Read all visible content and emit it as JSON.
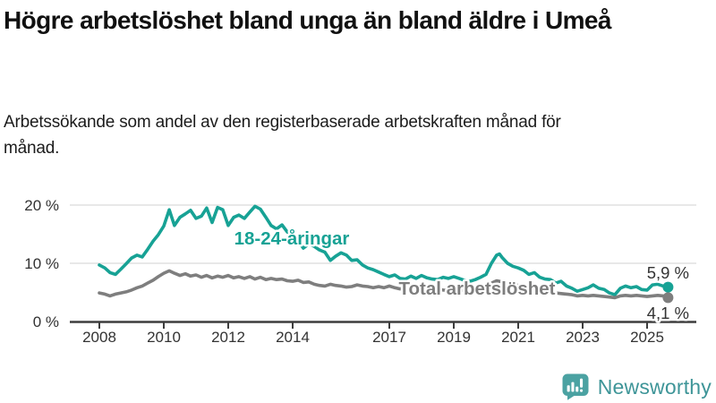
{
  "header": {
    "title": "Högre arbetslöshet bland unga än bland äldre i Umeå",
    "subtitle": "Arbetssökande som andel av den registerbaserade arbetskraften månad för månad."
  },
  "branding": {
    "name": "Newsworthy",
    "icon": "newsworthy-speech-bubble-barchart-icon",
    "text_color": "#3E9598",
    "icon_color": "#4BA2A2"
  },
  "chart_data": {
    "type": "line",
    "title": "Högre arbetslöshet bland unga än bland äldre i Umeå",
    "subtitle": "Arbetssökande som andel av den registerbaserade arbetskraften månad för månad.",
    "unit": "%",
    "grid": "horizontal-only",
    "legend_position": "inline-labels-on-lines",
    "xlim": [
      2007.1,
      2026.5
    ],
    "ylim": [
      0,
      22
    ],
    "x_ticks": [
      2008,
      2010,
      2012,
      2014,
      2017,
      2019,
      2021,
      2023,
      2025
    ],
    "y_ticks": [
      {
        "value": 0,
        "label": "0 %"
      },
      {
        "value": 10,
        "label": "10 %"
      },
      {
        "value": 20,
        "label": "20 %"
      }
    ],
    "colors": {
      "youth_line": "#17A295",
      "total_line": "#7E7E7E",
      "axis": "#3D3D3D",
      "gridline": "#DBDBDB",
      "tick_label": "#333333",
      "end_label": "#333333"
    },
    "series": [
      {
        "name": "18-24-åringar",
        "color": "#17A295",
        "end_label": "5,9 %",
        "end_value": 5.9,
        "points": [
          [
            2008.0,
            9.7
          ],
          [
            2008.17,
            9.2
          ],
          [
            2008.33,
            8.4
          ],
          [
            2008.5,
            8.1
          ],
          [
            2008.67,
            9.0
          ],
          [
            2008.83,
            9.9
          ],
          [
            2009.0,
            10.9
          ],
          [
            2009.17,
            11.4
          ],
          [
            2009.33,
            11.1
          ],
          [
            2009.5,
            12.4
          ],
          [
            2009.67,
            13.8
          ],
          [
            2009.83,
            14.9
          ],
          [
            2010.0,
            16.4
          ],
          [
            2010.17,
            19.2
          ],
          [
            2010.33,
            16.5
          ],
          [
            2010.5,
            17.9
          ],
          [
            2010.67,
            18.5
          ],
          [
            2010.83,
            19.1
          ],
          [
            2011.0,
            17.7
          ],
          [
            2011.17,
            18.1
          ],
          [
            2011.33,
            19.5
          ],
          [
            2011.5,
            17.0
          ],
          [
            2011.67,
            19.6
          ],
          [
            2011.83,
            19.2
          ],
          [
            2012.0,
            16.5
          ],
          [
            2012.17,
            17.9
          ],
          [
            2012.33,
            18.3
          ],
          [
            2012.5,
            17.7
          ],
          [
            2012.67,
            18.8
          ],
          [
            2012.83,
            19.8
          ],
          [
            2013.0,
            19.3
          ],
          [
            2013.17,
            17.9
          ],
          [
            2013.33,
            16.5
          ],
          [
            2013.5,
            15.9
          ],
          [
            2013.67,
            16.6
          ],
          [
            2013.83,
            15.4
          ],
          [
            2014.0,
            14.6
          ],
          [
            2014.17,
            13.9
          ],
          [
            2014.33,
            12.6
          ],
          [
            2014.5,
            13.3
          ],
          [
            2014.67,
            12.9
          ],
          [
            2014.83,
            12.3
          ],
          [
            2015.0,
            11.9
          ],
          [
            2015.17,
            10.5
          ],
          [
            2015.33,
            11.2
          ],
          [
            2015.5,
            11.8
          ],
          [
            2015.67,
            11.4
          ],
          [
            2015.83,
            10.5
          ],
          [
            2016.0,
            10.6
          ],
          [
            2016.17,
            9.7
          ],
          [
            2016.33,
            9.2
          ],
          [
            2016.5,
            8.9
          ],
          [
            2016.67,
            8.5
          ],
          [
            2016.83,
            8.1
          ],
          [
            2017.0,
            7.7
          ],
          [
            2017.17,
            8.0
          ],
          [
            2017.33,
            7.4
          ],
          [
            2017.5,
            7.3
          ],
          [
            2017.67,
            7.8
          ],
          [
            2017.83,
            7.4
          ],
          [
            2018.0,
            7.9
          ],
          [
            2018.17,
            7.5
          ],
          [
            2018.33,
            7.3
          ],
          [
            2018.5,
            7.2
          ],
          [
            2018.67,
            7.6
          ],
          [
            2018.83,
            7.4
          ],
          [
            2019.0,
            7.7
          ],
          [
            2019.17,
            7.4
          ],
          [
            2019.33,
            7.1
          ],
          [
            2019.5,
            6.9
          ],
          [
            2019.67,
            7.2
          ],
          [
            2019.83,
            7.6
          ],
          [
            2020.0,
            8.1
          ],
          [
            2020.17,
            10.0
          ],
          [
            2020.33,
            11.4
          ],
          [
            2020.42,
            11.6
          ],
          [
            2020.5,
            11.0
          ],
          [
            2020.67,
            10.0
          ],
          [
            2020.83,
            9.5
          ],
          [
            2021.0,
            9.2
          ],
          [
            2021.17,
            8.8
          ],
          [
            2021.33,
            8.1
          ],
          [
            2021.5,
            8.4
          ],
          [
            2021.67,
            7.6
          ],
          [
            2021.83,
            7.3
          ],
          [
            2022.0,
            7.2
          ],
          [
            2022.17,
            6.6
          ],
          [
            2022.33,
            6.9
          ],
          [
            2022.5,
            6.1
          ],
          [
            2022.67,
            5.7
          ],
          [
            2022.83,
            5.2
          ],
          [
            2023.0,
            5.5
          ],
          [
            2023.17,
            5.8
          ],
          [
            2023.33,
            6.3
          ],
          [
            2023.5,
            5.7
          ],
          [
            2023.67,
            5.5
          ],
          [
            2023.83,
            4.9
          ],
          [
            2024.0,
            4.6
          ],
          [
            2024.17,
            5.7
          ],
          [
            2024.33,
            6.1
          ],
          [
            2024.5,
            5.8
          ],
          [
            2024.67,
            6.0
          ],
          [
            2024.83,
            5.5
          ],
          [
            2025.0,
            5.4
          ],
          [
            2025.17,
            6.3
          ],
          [
            2025.33,
            6.4
          ],
          [
            2025.5,
            6.1
          ],
          [
            2025.65,
            5.9
          ]
        ]
      },
      {
        "name": "Total arbetslöshet",
        "color": "#7E7E7E",
        "end_label": "4,1 %",
        "end_value": 4.1,
        "points": [
          [
            2008.0,
            4.9
          ],
          [
            2008.17,
            4.7
          ],
          [
            2008.33,
            4.4
          ],
          [
            2008.5,
            4.7
          ],
          [
            2008.67,
            4.9
          ],
          [
            2008.83,
            5.1
          ],
          [
            2009.0,
            5.4
          ],
          [
            2009.17,
            5.8
          ],
          [
            2009.33,
            6.1
          ],
          [
            2009.5,
            6.6
          ],
          [
            2009.67,
            7.1
          ],
          [
            2009.83,
            7.7
          ],
          [
            2010.0,
            8.3
          ],
          [
            2010.17,
            8.7
          ],
          [
            2010.33,
            8.3
          ],
          [
            2010.5,
            7.9
          ],
          [
            2010.67,
            8.2
          ],
          [
            2010.83,
            7.8
          ],
          [
            2011.0,
            8.0
          ],
          [
            2011.17,
            7.6
          ],
          [
            2011.33,
            7.9
          ],
          [
            2011.5,
            7.5
          ],
          [
            2011.67,
            7.8
          ],
          [
            2011.83,
            7.6
          ],
          [
            2012.0,
            7.9
          ],
          [
            2012.17,
            7.5
          ],
          [
            2012.33,
            7.7
          ],
          [
            2012.5,
            7.4
          ],
          [
            2012.67,
            7.7
          ],
          [
            2012.83,
            7.3
          ],
          [
            2013.0,
            7.6
          ],
          [
            2013.17,
            7.2
          ],
          [
            2013.33,
            7.4
          ],
          [
            2013.5,
            7.2
          ],
          [
            2013.67,
            7.3
          ],
          [
            2013.83,
            7.0
          ],
          [
            2014.0,
            6.9
          ],
          [
            2014.17,
            7.1
          ],
          [
            2014.33,
            6.7
          ],
          [
            2014.5,
            6.8
          ],
          [
            2014.67,
            6.4
          ],
          [
            2014.83,
            6.2
          ],
          [
            2015.0,
            6.1
          ],
          [
            2015.17,
            6.4
          ],
          [
            2015.33,
            6.2
          ],
          [
            2015.5,
            6.1
          ],
          [
            2015.67,
            5.9
          ],
          [
            2015.83,
            6.0
          ],
          [
            2016.0,
            6.3
          ],
          [
            2016.17,
            6.1
          ],
          [
            2016.33,
            6.0
          ],
          [
            2016.5,
            5.8
          ],
          [
            2016.67,
            6.0
          ],
          [
            2016.83,
            5.8
          ],
          [
            2017.0,
            6.1
          ],
          [
            2017.17,
            5.8
          ],
          [
            2017.33,
            5.6
          ],
          [
            2017.5,
            5.8
          ],
          [
            2017.67,
            5.6
          ],
          [
            2017.83,
            5.5
          ],
          [
            2018.0,
            5.7
          ],
          [
            2018.17,
            5.5
          ],
          [
            2018.33,
            5.4
          ],
          [
            2018.5,
            5.6
          ],
          [
            2018.67,
            5.4
          ],
          [
            2018.83,
            5.3
          ],
          [
            2019.0,
            5.5
          ],
          [
            2019.17,
            5.3
          ],
          [
            2019.33,
            5.4
          ],
          [
            2019.5,
            5.3
          ],
          [
            2019.67,
            5.5
          ],
          [
            2019.83,
            5.6
          ],
          [
            2020.0,
            5.8
          ],
          [
            2020.17,
            6.6
          ],
          [
            2020.33,
            7.0
          ],
          [
            2020.5,
            6.8
          ],
          [
            2020.67,
            6.6
          ],
          [
            2020.83,
            6.4
          ],
          [
            2021.0,
            6.2
          ],
          [
            2021.17,
            6.0
          ],
          [
            2021.33,
            5.8
          ],
          [
            2021.5,
            5.5
          ],
          [
            2021.67,
            5.3
          ],
          [
            2021.83,
            5.2
          ],
          [
            2022.0,
            5.1
          ],
          [
            2022.17,
            4.9
          ],
          [
            2022.33,
            4.8
          ],
          [
            2022.5,
            4.7
          ],
          [
            2022.67,
            4.6
          ],
          [
            2022.83,
            4.4
          ],
          [
            2023.0,
            4.5
          ],
          [
            2023.17,
            4.4
          ],
          [
            2023.33,
            4.5
          ],
          [
            2023.5,
            4.4
          ],
          [
            2023.67,
            4.3
          ],
          [
            2023.83,
            4.2
          ],
          [
            2024.0,
            4.1
          ],
          [
            2024.17,
            4.4
          ],
          [
            2024.33,
            4.5
          ],
          [
            2024.5,
            4.4
          ],
          [
            2024.67,
            4.5
          ],
          [
            2024.83,
            4.4
          ],
          [
            2025.0,
            4.3
          ],
          [
            2025.17,
            4.4
          ],
          [
            2025.33,
            4.5
          ],
          [
            2025.5,
            4.4
          ],
          [
            2025.65,
            4.1
          ]
        ]
      }
    ]
  }
}
